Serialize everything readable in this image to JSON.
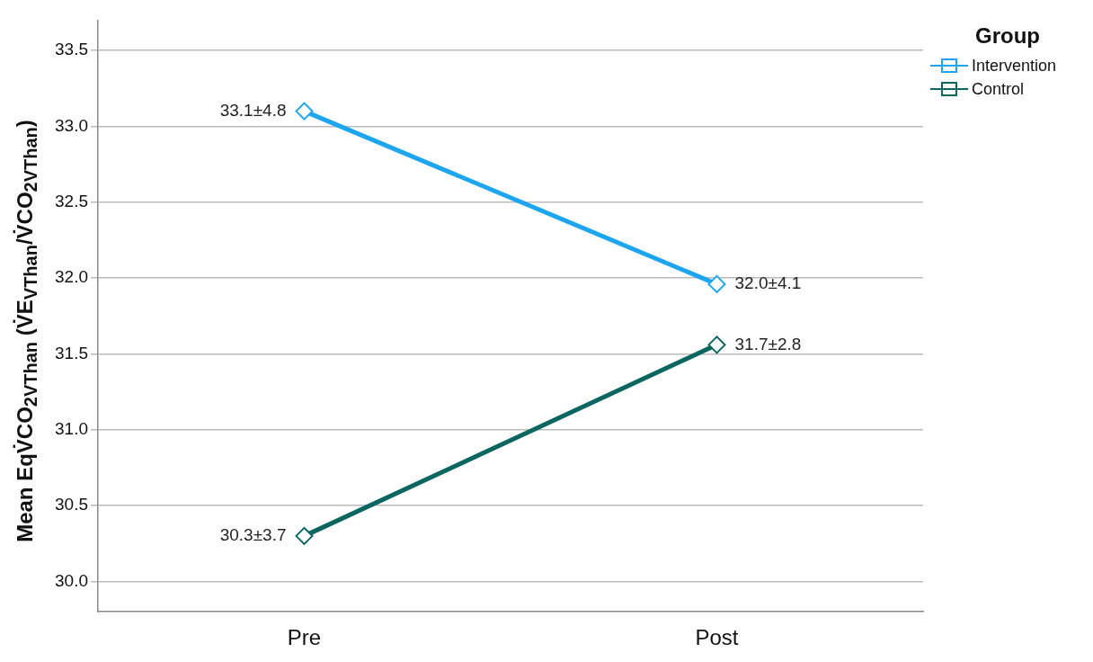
{
  "chart_data": {
    "type": "line",
    "ylabel": "Mean EqV̇CO$_{2VThan}$ (V̇E$_{VThan}$/V̇CO$_{2VThan}$)",
    "legend_title": "Group",
    "categories": [
      "Pre",
      "Post"
    ],
    "series": [
      {
        "name": "Intervention",
        "color": "#1ea5f0",
        "values": [
          33.1,
          31.96
        ]
      },
      {
        "name": "Control",
        "color": "#0b6660",
        "values": [
          30.3,
          31.56
        ]
      }
    ],
    "annotations": [
      {
        "text": "33.1±4.8",
        "x": "Pre",
        "y": 33.1
      },
      {
        "text": "32.0±4.1",
        "x": "Post",
        "y": 31.96
      },
      {
        "text": "30.3±3.7",
        "x": "Pre",
        "y": 30.3
      },
      {
        "text": "31.7±2.8",
        "x": "Post",
        "y": 31.56
      }
    ],
    "ylim": [
      29.8,
      33.7
    ],
    "yticks": [
      {
        "value": 30,
        "label": "30.0"
      },
      30.5,
      {
        "value": 31,
        "label": "31.0"
      },
      31.5,
      {
        "value": 32,
        "label": "32.0"
      },
      32.5,
      {
        "value": 33,
        "label": "33.0"
      },
      33.5
    ],
    "grid": "y",
    "legend": "top right",
    "marker": "diamond",
    "line_style": "solid"
  }
}
